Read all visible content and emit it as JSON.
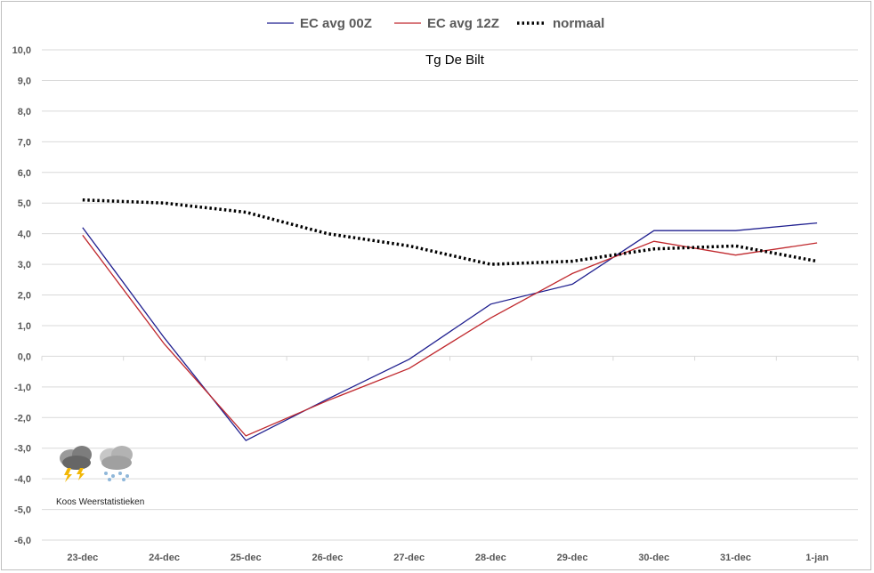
{
  "chart_data": {
    "type": "line",
    "title": "Tg De Bilt",
    "categories": [
      "23-dec",
      "24-dec",
      "25-dec",
      "26-dec",
      "27-dec",
      "28-dec",
      "29-dec",
      "30-dec",
      "31-dec",
      "1-jan"
    ],
    "ylim": [
      -6,
      10
    ],
    "yticks": [
      "10,0",
      "9,0",
      "8,0",
      "7,0",
      "6,0",
      "5,0",
      "4,0",
      "3,0",
      "2,0",
      "1,0",
      "0,0",
      "-1,0",
      "-2,0",
      "-3,0",
      "-4,0",
      "-5,0",
      "-6,0"
    ],
    "grid": true,
    "legend_position": "top",
    "series": [
      {
        "name": "EC avg 00Z",
        "color": "#1f1f8f",
        "style": "solid",
        "values": [
          4.2,
          0.6,
          -2.75,
          -1.4,
          -0.1,
          1.7,
          2.35,
          4.1,
          4.1,
          4.35
        ]
      },
      {
        "name": "EC avg 12Z",
        "color": "#c0282d",
        "style": "solid",
        "values": [
          3.95,
          0.4,
          -2.6,
          -1.45,
          -0.4,
          1.25,
          2.7,
          3.75,
          3.3,
          3.7
        ]
      },
      {
        "name": "normaal",
        "color": "#000000",
        "style": "dotted",
        "values": [
          5.1,
          5.0,
          4.7,
          4.0,
          3.6,
          3.0,
          3.1,
          3.5,
          3.6,
          3.1
        ]
      }
    ]
  },
  "watermark": {
    "text": "Koos Weerstatistieken",
    "icons": [
      "thunderstorm-cloud-icon",
      "snow-cloud-icon"
    ]
  }
}
